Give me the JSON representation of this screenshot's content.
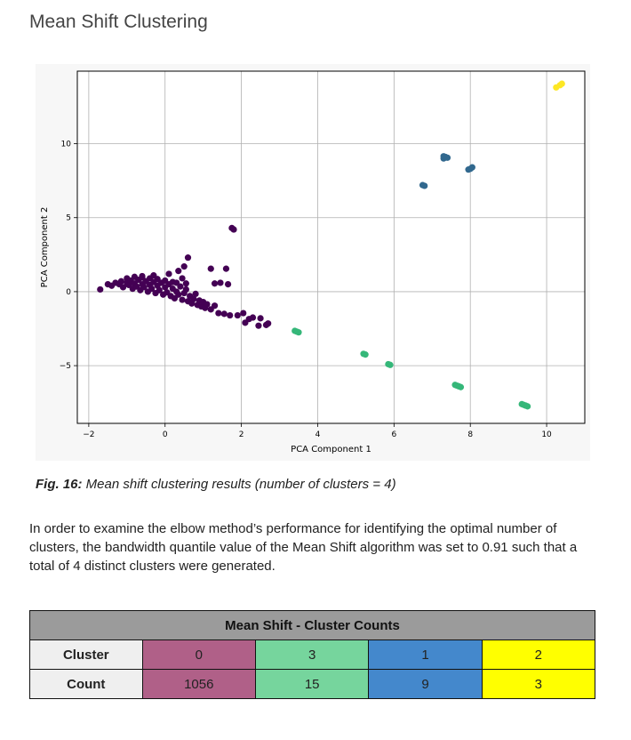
{
  "page": {
    "heading": "Mean Shift Clustering",
    "caption_label": "Fig. 16:",
    "caption_text": " Mean shift clustering results (number of clusters = 4)",
    "paragraph": "In order to examine the elbow method’s performance for identifying the optimal number of clusters, the bandwidth quantile value of the Mean Shift algorithm was set to 0.91 such that a total of 4 distinct clusters were generated."
  },
  "chart_data": {
    "type": "scatter",
    "xlabel": "PCA Component 1",
    "ylabel": "PCA Component 2",
    "xlim": [
      -2.3,
      11
    ],
    "ylim": [
      -8.9,
      14.9
    ],
    "xticks": [
      -2,
      0,
      2,
      4,
      6,
      8,
      10
    ],
    "yticks": [
      -5,
      0,
      5,
      10
    ],
    "grid": true,
    "series": [
      {
        "cluster": 0,
        "color": "#440154",
        "points": [
          [
            -1.7,
            0.15
          ],
          [
            -1.5,
            0.5
          ],
          [
            -1.4,
            0.4
          ],
          [
            -1.3,
            0.6
          ],
          [
            -1.2,
            0.5
          ],
          [
            -1.15,
            0.7
          ],
          [
            -1.1,
            0.3
          ],
          [
            -1.0,
            0.6
          ],
          [
            -1.0,
            0.9
          ],
          [
            -0.95,
            0.45
          ],
          [
            -0.9,
            0.75
          ],
          [
            -0.85,
            0.2
          ],
          [
            -0.8,
            0.55
          ],
          [
            -0.8,
            1.0
          ],
          [
            -0.75,
            0.35
          ],
          [
            -0.7,
            0.8
          ],
          [
            -0.65,
            0.1
          ],
          [
            -0.6,
            0.5
          ],
          [
            -0.6,
            0.95
          ],
          [
            -0.55,
            0.3
          ],
          [
            -0.5,
            0.7
          ],
          [
            -0.45,
            0.0
          ],
          [
            -0.4,
            0.45
          ],
          [
            -0.4,
            0.9
          ],
          [
            -0.35,
            0.2
          ],
          [
            -0.3,
            0.65
          ],
          [
            -0.25,
            -0.1
          ],
          [
            -0.2,
            0.4
          ],
          [
            -0.2,
            0.85
          ],
          [
            -0.15,
            0.1
          ],
          [
            -0.1,
            0.6
          ],
          [
            -0.05,
            -0.2
          ],
          [
            0.0,
            0.3
          ],
          [
            0.0,
            0.75
          ],
          [
            0.05,
            -0.05
          ],
          [
            0.1,
            0.5
          ],
          [
            0.15,
            -0.3
          ],
          [
            0.2,
            0.2
          ],
          [
            0.2,
            0.65
          ],
          [
            0.25,
            -0.45
          ],
          [
            0.3,
            0.0
          ],
          [
            0.35,
            -0.2
          ],
          [
            0.4,
            0.35
          ],
          [
            0.45,
            -0.55
          ],
          [
            0.5,
            -0.1
          ],
          [
            0.55,
            0.15
          ],
          [
            0.6,
            -0.65
          ],
          [
            0.65,
            -0.3
          ],
          [
            0.7,
            -0.8
          ],
          [
            0.75,
            -0.5
          ],
          [
            0.8,
            -0.15
          ],
          [
            0.85,
            -0.9
          ],
          [
            0.9,
            -0.6
          ],
          [
            0.95,
            -1.0
          ],
          [
            1.0,
            -0.7
          ],
          [
            1.05,
            -1.1
          ],
          [
            1.1,
            -0.85
          ],
          [
            1.2,
            -1.2
          ],
          [
            1.3,
            -0.95
          ],
          [
            1.4,
            -1.45
          ],
          [
            -0.3,
            1.1
          ],
          [
            0.3,
            0.6
          ],
          [
            0.1,
            1.2
          ],
          [
            0.35,
            1.4
          ],
          [
            -0.6,
            1.05
          ],
          [
            0.45,
            0.9
          ],
          [
            0.5,
            1.7
          ],
          [
            0.6,
            2.3
          ],
          [
            0.55,
            0.55
          ],
          [
            1.2,
            1.55
          ],
          [
            1.6,
            1.55
          ],
          [
            1.3,
            0.55
          ],
          [
            1.45,
            0.6
          ],
          [
            1.65,
            0.5
          ],
          [
            1.75,
            4.3
          ],
          [
            1.8,
            4.2
          ],
          [
            1.55,
            -1.5
          ],
          [
            1.7,
            -1.6
          ],
          [
            1.9,
            -1.6
          ],
          [
            2.05,
            -1.45
          ],
          [
            2.1,
            -2.1
          ],
          [
            2.2,
            -1.85
          ],
          [
            2.3,
            -1.75
          ],
          [
            2.45,
            -2.3
          ],
          [
            2.5,
            -1.8
          ],
          [
            2.65,
            -2.25
          ],
          [
            2.7,
            -2.15
          ]
        ]
      },
      {
        "cluster": 1,
        "color": "#31688e",
        "points": [
          [
            7.3,
            9.0
          ],
          [
            7.35,
            9.1
          ],
          [
            7.4,
            9.05
          ],
          [
            8.0,
            8.3
          ],
          [
            8.05,
            8.4
          ],
          [
            6.75,
            7.2
          ],
          [
            6.8,
            7.15
          ],
          [
            7.95,
            8.25
          ],
          [
            7.3,
            9.15
          ]
        ]
      },
      {
        "cluster": 2,
        "color": "#35b779",
        "points": [
          [
            3.4,
            -2.65
          ],
          [
            3.5,
            -2.75
          ],
          [
            5.25,
            -4.25
          ],
          [
            5.85,
            -4.9
          ],
          [
            7.65,
            -6.35
          ],
          [
            7.75,
            -6.45
          ],
          [
            9.35,
            -7.6
          ],
          [
            9.45,
            -7.7
          ],
          [
            9.5,
            -7.75
          ],
          [
            3.45,
            -2.7
          ],
          [
            5.2,
            -4.2
          ],
          [
            5.9,
            -4.95
          ],
          [
            7.7,
            -6.4
          ],
          [
            9.4,
            -7.65
          ],
          [
            7.6,
            -6.3
          ]
        ]
      },
      {
        "cluster": 3,
        "color": "#fde725",
        "points": [
          [
            10.25,
            13.8
          ],
          [
            10.35,
            13.95
          ],
          [
            10.4,
            14.05
          ]
        ]
      }
    ]
  },
  "table": {
    "title": "Mean Shift - Cluster Counts",
    "row_headers": [
      "Cluster",
      "Count"
    ],
    "columns": [
      {
        "cluster": "0",
        "count": "1056",
        "color": "#b06088"
      },
      {
        "cluster": "3",
        "count": "15",
        "color": "#76d59d"
      },
      {
        "cluster": "1",
        "count": "9",
        "color": "#4488cc"
      },
      {
        "cluster": "2",
        "count": "3",
        "color": "#ffff00"
      }
    ]
  }
}
